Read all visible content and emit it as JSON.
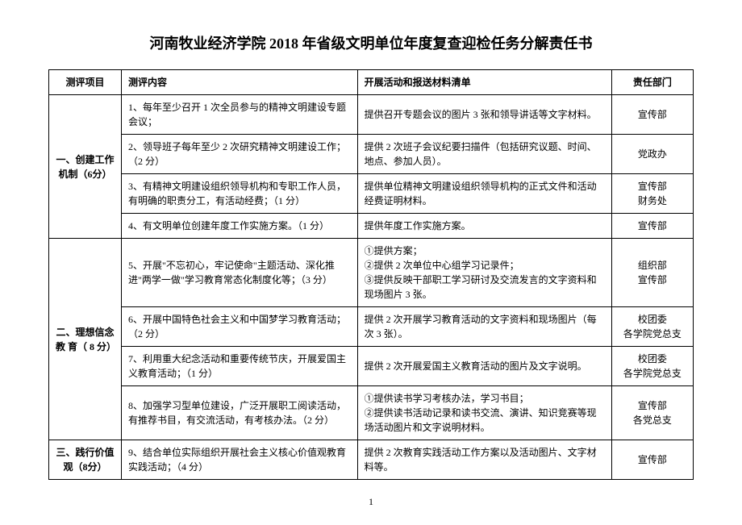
{
  "title": "河南牧业经济学院 2018 年省级文明单位年度复查迎检任务分解责任书",
  "headers": {
    "col1": "测评项目",
    "col2": "测评内容",
    "col3": "开展活动和报送材料清单",
    "col4": "责任部门"
  },
  "sections": [
    {
      "name": "一、创建工作机制（6分）",
      "rows": [
        {
          "content": "1、每年至少召开 1 次全员参与的精神文明建设专题会议；",
          "activity": "提供召开专题会议的图片 3 张和领导讲话等文字材料。",
          "dept": "宣传部"
        },
        {
          "content": "2、领导班子每年至少 2 次研究精神文明建设工作；（2 分）",
          "activity": "提供 2 次班子会议纪要扫描件（包括研究议题、时间、地点、参加人员）。",
          "dept": "党政办"
        },
        {
          "content": "3、有精神文明建设组织领导机构和专职工作人员，有明确的职责分工，有活动经费；（1 分）",
          "activity": "提供单位精神文明建设组织领导机构的正式文件和活动经费证明材料。",
          "dept": "宣传部\n财务处"
        },
        {
          "content": "4、有文明单位创建年度工作实施方案。（1 分）",
          "activity": "提供年度工作实施方案。",
          "dept": "宣传部"
        }
      ]
    },
    {
      "name": "二、理想信念 教 育（ 8 分）",
      "rows": [
        {
          "content": "5、开展\"不忘初心，牢记使命\"主题活动、深化推进\"两学一做\"学习教育常态化制度化等；（3 分）",
          "activity": "①提供方案；\n②提供 2 次单位中心组学习记录件；\n③提供反映干部职工学习研讨及交流发言的文字资料和现场图片 3 张。",
          "dept": "组织部\n宣传部"
        },
        {
          "content": "6、开展中国特色社会主义和中国梦学习教育活动；（2 分）",
          "activity": "提供 2 次开展学习教育活动的文字资料和现场图片（每次 3 张）。",
          "dept": "校团委\n各学院党总支"
        },
        {
          "content": "7、利用重大纪念活动和重要传统节庆，开展爱国主义教育活动；（1 分）",
          "activity": "提供 2 次开展爱国主义教育活动的图片及文字说明。",
          "dept": "校团委\n各学院党总支"
        },
        {
          "content": "8、加强学习型单位建设，广泛开展职工阅读活动，有推荐书目，有交流活动，有考核办法。（2 分）",
          "activity": "①提供读书学习考核办法，学习书目；\n②提供读书活动记录和读书交流、演讲、知识竞赛等现场活动图片和文字说明材料。",
          "dept": "宣传部\n各党总支"
        }
      ]
    },
    {
      "name": "三、践行价值观（8分）",
      "rows": [
        {
          "content": "9、结合单位实际组织开展社会主义核心价值观教育实践活动；（4 分）",
          "activity": "提供 2 次教育实践活动工作方案以及活动图片、文字材料等。",
          "dept": "宣传部"
        }
      ]
    }
  ],
  "pageNumber": "1"
}
